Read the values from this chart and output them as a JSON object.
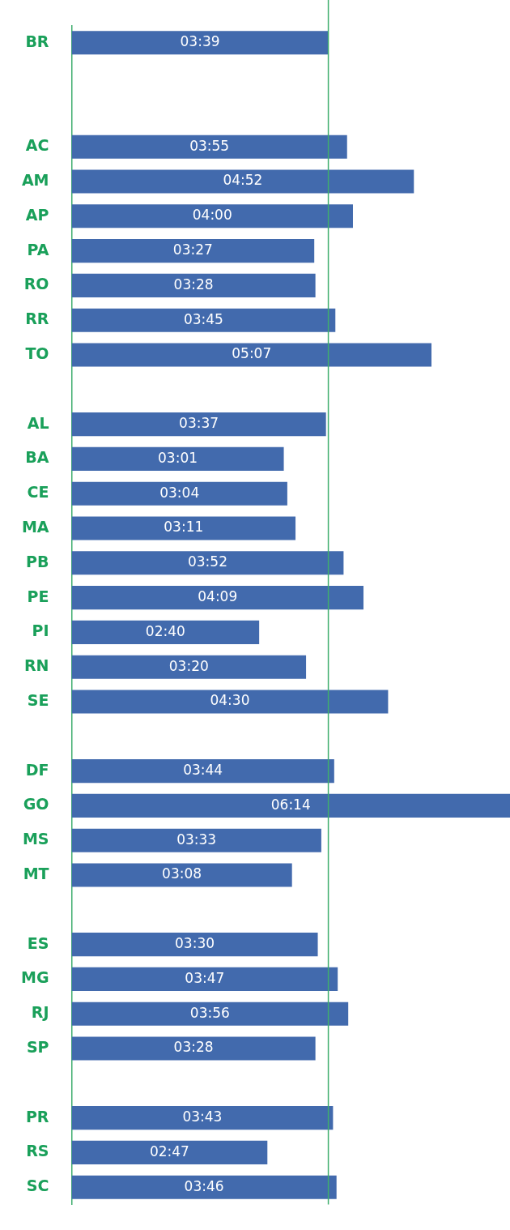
{
  "chart_data": {
    "type": "bar",
    "orientation": "horizontal",
    "categories": [
      "BR",
      null,
      null,
      "AC",
      "AM",
      "AP",
      "PA",
      "RO",
      "RR",
      "TO",
      null,
      "AL",
      "BA",
      "CE",
      "MA",
      "PB",
      "PE",
      "PI",
      "RN",
      "SE",
      null,
      "DF",
      "GO",
      "MS",
      "MT",
      null,
      "ES",
      "MG",
      "RJ",
      "SP",
      null,
      "PR",
      "RS",
      "SC"
    ],
    "values": [
      219,
      null,
      null,
      235,
      292,
      240,
      207,
      208,
      225,
      307,
      null,
      217,
      181,
      184,
      191,
      232,
      249,
      160,
      200,
      270,
      null,
      224,
      374,
      213,
      188,
      null,
      210,
      227,
      236,
      208,
      null,
      223,
      167,
      226
    ],
    "value_labels": [
      "03:39",
      null,
      null,
      "03:55",
      "04:52",
      "04:00",
      "03:27",
      "03:28",
      "03:45",
      "05:07",
      null,
      "03:37",
      "03:01",
      "03:04",
      "03:11",
      "03:52",
      "04:09",
      "02:40",
      "03:20",
      "04:30",
      null,
      "03:44",
      "06:14",
      "03:33",
      "03:08",
      null,
      "03:30",
      "03:47",
      "03:56",
      "03:28",
      null,
      "03:43",
      "02:47",
      "03:46"
    ],
    "color": "#426aad",
    "xlim": [
      0,
      374
    ],
    "grid": false,
    "legend": false,
    "ref_lines": [
      {
        "axis": "x",
        "value": 219,
        "color": "#3fae6e"
      }
    ]
  }
}
